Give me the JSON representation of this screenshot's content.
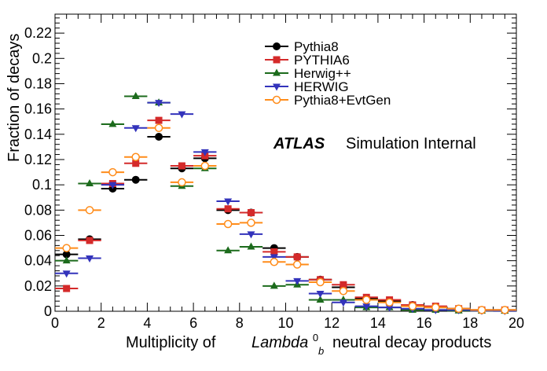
{
  "chart_data": {
    "type": "scatter",
    "xlabel": "Multiplicity of",
    "xlabel_symbol": "Lambda",
    "xlabel_sup": "0",
    "xlabel_sub": "b",
    "xlabel_suffix": "neutral decay products",
    "ylabel": "Fraction of decays",
    "xlim": [
      0,
      20
    ],
    "ylim": [
      0,
      0.235
    ],
    "x_ticks": [
      0,
      2,
      4,
      6,
      8,
      10,
      12,
      14,
      16,
      18,
      20
    ],
    "x_tick_labels": [
      "0",
      "2",
      "4",
      "6",
      "8",
      "10",
      "12",
      "14",
      "16",
      "18",
      "20"
    ],
    "y_ticks": [
      0,
      0.02,
      0.04,
      0.06,
      0.08,
      0.1,
      0.12,
      0.14,
      0.16,
      0.18,
      0.2,
      0.22
    ],
    "y_tick_labels": [
      "0",
      "0.02",
      "0.04",
      "0.06",
      "0.08",
      "0.1",
      "0.12",
      "0.14",
      "0.16",
      "0.18",
      "0.2",
      "0.22"
    ],
    "grid": false,
    "legend_position": "top-right",
    "bin_width": 1,
    "x": [
      0.5,
      1.5,
      2.5,
      3.5,
      4.5,
      5.5,
      6.5,
      7.5,
      8.5,
      9.5,
      10.5,
      11.5,
      12.5,
      13.5,
      14.5,
      15.5,
      16.5,
      17.5,
      18.5,
      19.5
    ],
    "series": [
      {
        "name": "Pythia8",
        "color": "#000000",
        "marker": "circle-filled",
        "values": [
          0.045,
          0.057,
          0.097,
          0.104,
          0.138,
          0.113,
          0.121,
          0.08,
          0.078,
          0.05,
          0.043,
          0.025,
          0.019,
          0.01,
          0.008,
          0.005,
          0.003,
          0.002,
          0.001,
          0.001
        ]
      },
      {
        "name": "PYTHIA6",
        "color": "#d42a2a",
        "marker": "square-filled",
        "values": [
          0.018,
          0.056,
          0.101,
          0.117,
          0.151,
          0.115,
          0.123,
          0.081,
          0.078,
          0.047,
          0.043,
          0.025,
          0.021,
          0.011,
          0.009,
          0.005,
          0.004,
          0.002,
          0.001,
          0.001
        ]
      },
      {
        "name": "Herwig++",
        "color": "#1c6b1c",
        "marker": "triangle-up-filled",
        "values": [
          0.04,
          0.101,
          0.148,
          0.17,
          0.165,
          0.099,
          0.113,
          0.048,
          0.051,
          0.02,
          0.021,
          0.009,
          0.009,
          0.003,
          0.003,
          0.001,
          0.001,
          0.0005,
          0.0003,
          0.0002
        ]
      },
      {
        "name": "HERWIG",
        "color": "#3333bb",
        "marker": "triangle-down-filled",
        "values": [
          0.03,
          0.042,
          0.1,
          0.145,
          0.165,
          0.156,
          0.126,
          0.087,
          0.061,
          0.043,
          0.024,
          0.014,
          0.007,
          0.004,
          0.003,
          0.002,
          0.001,
          0.001,
          0.0005,
          0.0003
        ]
      },
      {
        "name": "Pythia8+EvtGen",
        "color": "#ff8c1a",
        "marker": "circle-open",
        "values": [
          0.05,
          0.08,
          0.11,
          0.122,
          0.145,
          0.102,
          0.115,
          0.069,
          0.07,
          0.039,
          0.037,
          0.023,
          0.016,
          0.009,
          0.007,
          0.004,
          0.003,
          0.002,
          0.001,
          0.001
        ]
      }
    ],
    "annotation": {
      "bold_italic": "ATLAS",
      "normal": "Simulation Internal"
    }
  }
}
